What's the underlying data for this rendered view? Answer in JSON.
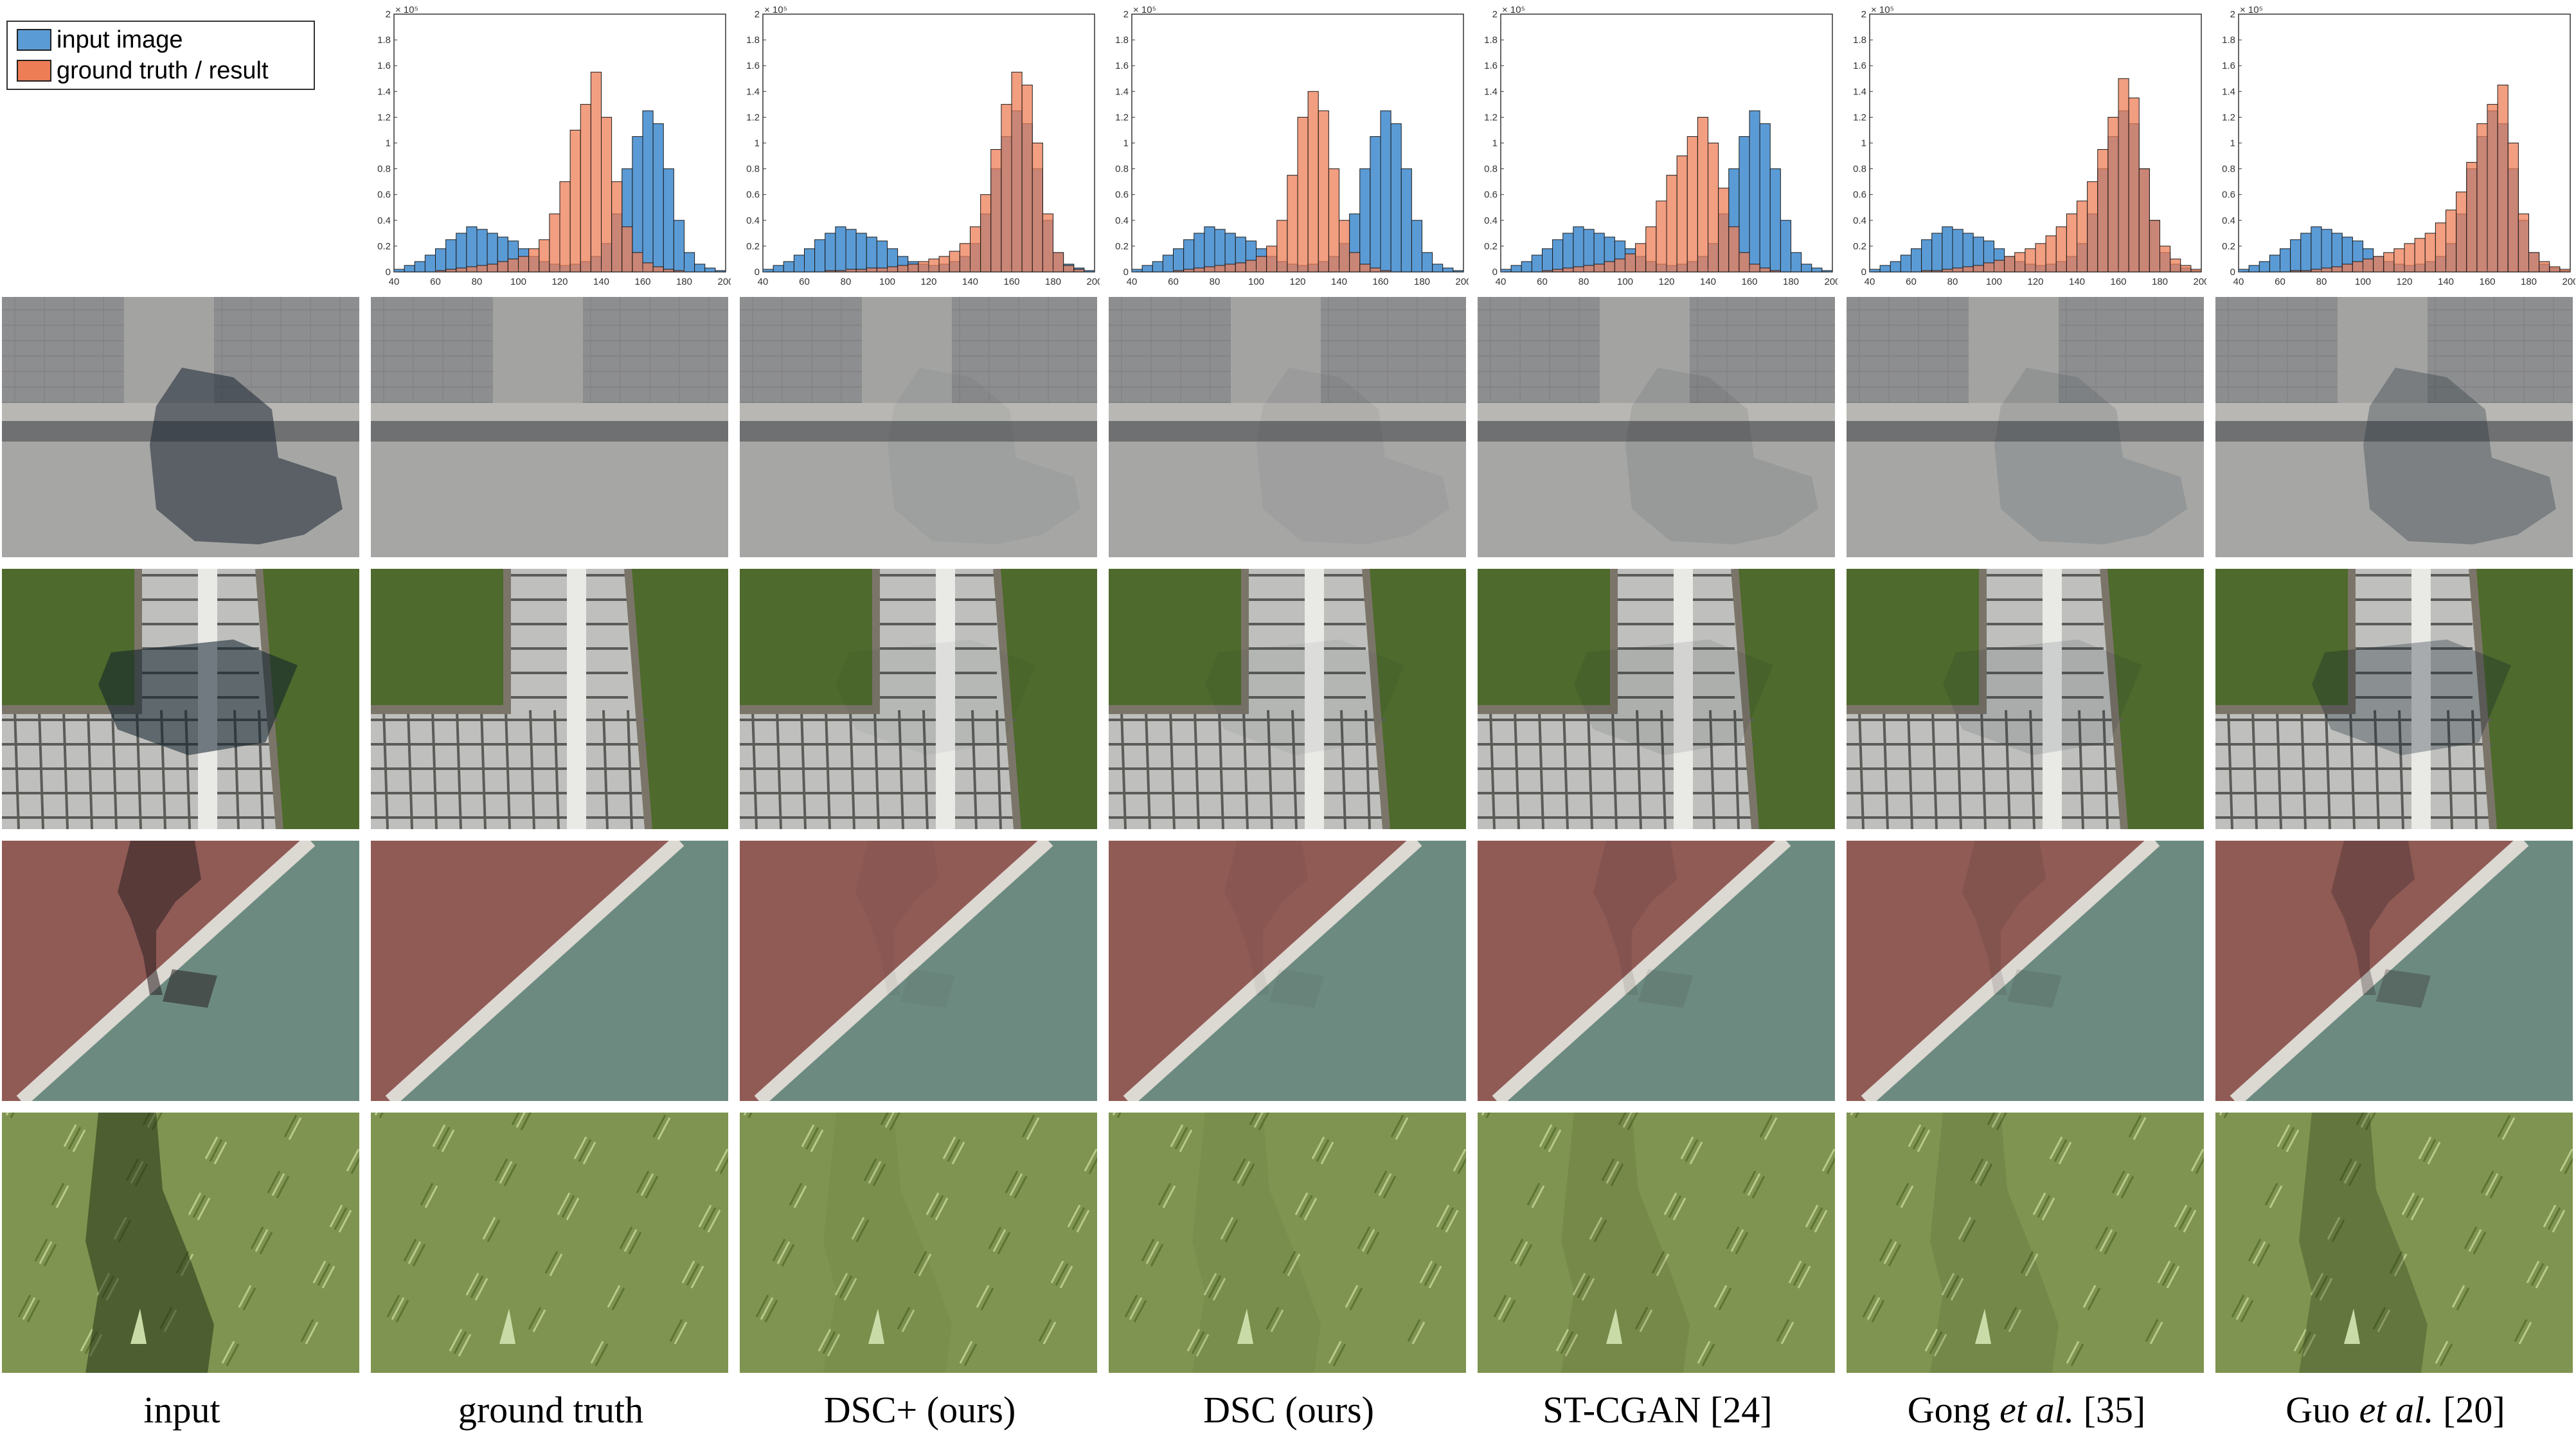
{
  "legend": {
    "input_label": "input image",
    "result_label": "ground truth / result",
    "input_color": "#5b9bd5",
    "result_color": "#ed7d55"
  },
  "columns": [
    {
      "label": "input"
    },
    {
      "label": "ground truth"
    },
    {
      "label": "DSC+ (ours)"
    },
    {
      "label": "DSC (ours)"
    },
    {
      "label": "ST-CGAN [24]"
    },
    {
      "label_prefix": "Gong ",
      "label_em": "et al.",
      "label_suffix": " [35]"
    },
    {
      "label_prefix": "Guo ",
      "label_em": "et al.",
      "label_suffix": " [20]"
    }
  ],
  "rows": [
    {
      "scene": "pavement with curb"
    },
    {
      "scene": "tiled path with grass"
    },
    {
      "scene": "red and green running track"
    },
    {
      "scene": "grass"
    }
  ],
  "chart_data": [
    {
      "type": "bar",
      "panel": "ground truth",
      "x": [
        40,
        45,
        50,
        55,
        60,
        65,
        70,
        75,
        80,
        85,
        90,
        95,
        100,
        105,
        110,
        115,
        120,
        125,
        130,
        135,
        140,
        145,
        150,
        155,
        160,
        165,
        170,
        175,
        180,
        185,
        190,
        195
      ],
      "xlim": [
        40,
        200
      ],
      "ylim": [
        0,
        2
      ],
      "y_exponent_label": "× 10⁵",
      "xticks": [
        "40",
        "60",
        "80",
        "100",
        "120",
        "140",
        "160",
        "180",
        "200"
      ],
      "yticks": [
        "0",
        "0.2",
        "0.4",
        "0.6",
        "0.8",
        "1",
        "1.2",
        "1.4",
        "1.6",
        "1.8",
        "2"
      ],
      "series": [
        {
          "name": "input image",
          "values": [
            0.02,
            0.05,
            0.08,
            0.13,
            0.18,
            0.25,
            0.3,
            0.35,
            0.33,
            0.3,
            0.27,
            0.24,
            0.18,
            0.12,
            0.08,
            0.06,
            0.05,
            0.06,
            0.08,
            0.12,
            0.22,
            0.45,
            0.8,
            1.05,
            1.25,
            1.15,
            0.8,
            0.4,
            0.15,
            0.06,
            0.03,
            0.01
          ]
        },
        {
          "name": "ground truth / result",
          "values": [
            0,
            0,
            0,
            0,
            0.01,
            0.02,
            0.03,
            0.04,
            0.05,
            0.06,
            0.08,
            0.1,
            0.12,
            0.18,
            0.25,
            0.45,
            0.7,
            1.1,
            1.3,
            1.55,
            1.2,
            0.7,
            0.35,
            0.15,
            0.07,
            0.04,
            0.02,
            0.01,
            0,
            0,
            0,
            0
          ]
        }
      ]
    },
    {
      "type": "bar",
      "panel": "DSC+ (ours)",
      "x": [
        40,
        45,
        50,
        55,
        60,
        65,
        70,
        75,
        80,
        85,
        90,
        95,
        100,
        105,
        110,
        115,
        120,
        125,
        130,
        135,
        140,
        145,
        150,
        155,
        160,
        165,
        170,
        175,
        180,
        185,
        190,
        195
      ],
      "xlim": [
        40,
        200
      ],
      "ylim": [
        0,
        2
      ],
      "y_exponent_label": "× 10⁵",
      "xticks": [
        "40",
        "60",
        "80",
        "100",
        "120",
        "140",
        "160",
        "180",
        "200"
      ],
      "yticks": [
        "0",
        "0.2",
        "0.4",
        "0.6",
        "0.8",
        "1",
        "1.2",
        "1.4",
        "1.6",
        "1.8",
        "2"
      ],
      "series": [
        {
          "name": "input image",
          "values": [
            0.02,
            0.05,
            0.08,
            0.13,
            0.18,
            0.25,
            0.3,
            0.35,
            0.33,
            0.3,
            0.27,
            0.24,
            0.18,
            0.12,
            0.08,
            0.06,
            0.05,
            0.06,
            0.08,
            0.12,
            0.22,
            0.45,
            0.8,
            1.05,
            1.25,
            1.15,
            0.8,
            0.4,
            0.15,
            0.06,
            0.03,
            0.01
          ]
        },
        {
          "name": "ground truth / result",
          "values": [
            0,
            0,
            0,
            0,
            0,
            0,
            0.01,
            0.01,
            0.02,
            0.02,
            0.03,
            0.03,
            0.04,
            0.05,
            0.06,
            0.08,
            0.1,
            0.12,
            0.16,
            0.22,
            0.35,
            0.6,
            0.95,
            1.3,
            1.55,
            1.45,
            1.0,
            0.45,
            0.15,
            0.05,
            0.02,
            0
          ]
        }
      ]
    },
    {
      "type": "bar",
      "panel": "DSC (ours)",
      "x": [
        40,
        45,
        50,
        55,
        60,
        65,
        70,
        75,
        80,
        85,
        90,
        95,
        100,
        105,
        110,
        115,
        120,
        125,
        130,
        135,
        140,
        145,
        150,
        155,
        160,
        165,
        170,
        175,
        180,
        185,
        190,
        195
      ],
      "xlim": [
        40,
        200
      ],
      "ylim": [
        0,
        2
      ],
      "y_exponent_label": "× 10⁵",
      "xticks": [
        "40",
        "60",
        "80",
        "100",
        "120",
        "140",
        "160",
        "180",
        "200"
      ],
      "yticks": [
        "0",
        "0.2",
        "0.4",
        "0.6",
        "0.8",
        "1",
        "1.2",
        "1.4",
        "1.6",
        "1.8",
        "2"
      ],
      "series": [
        {
          "name": "input image",
          "values": [
            0.02,
            0.05,
            0.08,
            0.13,
            0.18,
            0.25,
            0.3,
            0.35,
            0.33,
            0.3,
            0.27,
            0.24,
            0.18,
            0.12,
            0.08,
            0.06,
            0.05,
            0.06,
            0.08,
            0.12,
            0.22,
            0.45,
            0.8,
            1.05,
            1.25,
            1.15,
            0.8,
            0.4,
            0.15,
            0.06,
            0.03,
            0.01
          ]
        },
        {
          "name": "ground truth / result",
          "values": [
            0,
            0,
            0,
            0,
            0.01,
            0.02,
            0.03,
            0.04,
            0.05,
            0.06,
            0.07,
            0.09,
            0.12,
            0.2,
            0.4,
            0.75,
            1.2,
            1.4,
            1.25,
            0.8,
            0.4,
            0.15,
            0.06,
            0.03,
            0.01,
            0,
            0,
            0,
            0,
            0,
            0,
            0
          ]
        }
      ]
    },
    {
      "type": "bar",
      "panel": "ST-CGAN [24]",
      "x": [
        40,
        45,
        50,
        55,
        60,
        65,
        70,
        75,
        80,
        85,
        90,
        95,
        100,
        105,
        110,
        115,
        120,
        125,
        130,
        135,
        140,
        145,
        150,
        155,
        160,
        165,
        170,
        175,
        180,
        185,
        190,
        195
      ],
      "xlim": [
        40,
        200
      ],
      "ylim": [
        0,
        2
      ],
      "y_exponent_label": "× 10⁵",
      "xticks": [
        "40",
        "60",
        "80",
        "100",
        "120",
        "140",
        "160",
        "180",
        "200"
      ],
      "yticks": [
        "0",
        "0.2",
        "0.4",
        "0.6",
        "0.8",
        "1",
        "1.2",
        "1.4",
        "1.6",
        "1.8",
        "2"
      ],
      "series": [
        {
          "name": "input image",
          "values": [
            0.02,
            0.05,
            0.08,
            0.13,
            0.18,
            0.25,
            0.3,
            0.35,
            0.33,
            0.3,
            0.27,
            0.24,
            0.18,
            0.12,
            0.08,
            0.06,
            0.05,
            0.06,
            0.08,
            0.12,
            0.22,
            0.45,
            0.8,
            1.05,
            1.25,
            1.15,
            0.8,
            0.4,
            0.15,
            0.06,
            0.03,
            0.01
          ]
        },
        {
          "name": "ground truth / result",
          "values": [
            0,
            0,
            0,
            0,
            0.01,
            0.02,
            0.03,
            0.04,
            0.05,
            0.06,
            0.08,
            0.1,
            0.14,
            0.22,
            0.35,
            0.55,
            0.75,
            0.9,
            1.05,
            1.2,
            1.0,
            0.65,
            0.35,
            0.15,
            0.06,
            0.03,
            0.01,
            0,
            0,
            0,
            0,
            0
          ]
        }
      ]
    },
    {
      "type": "bar",
      "panel": "Gong et al. [35]",
      "x": [
        40,
        45,
        50,
        55,
        60,
        65,
        70,
        75,
        80,
        85,
        90,
        95,
        100,
        105,
        110,
        115,
        120,
        125,
        130,
        135,
        140,
        145,
        150,
        155,
        160,
        165,
        170,
        175,
        180,
        185,
        190,
        195
      ],
      "xlim": [
        40,
        200
      ],
      "ylim": [
        0,
        2
      ],
      "y_exponent_label": "× 10⁵",
      "xticks": [
        "40",
        "60",
        "80",
        "100",
        "120",
        "140",
        "160",
        "180",
        "200"
      ],
      "yticks": [
        "0",
        "0.2",
        "0.4",
        "0.6",
        "0.8",
        "1",
        "1.2",
        "1.4",
        "1.6",
        "1.8",
        "2"
      ],
      "series": [
        {
          "name": "input image",
          "values": [
            0.02,
            0.05,
            0.08,
            0.13,
            0.18,
            0.25,
            0.3,
            0.35,
            0.33,
            0.3,
            0.27,
            0.24,
            0.18,
            0.12,
            0.08,
            0.06,
            0.05,
            0.06,
            0.08,
            0.12,
            0.22,
            0.45,
            0.8,
            1.05,
            1.25,
            1.15,
            0.8,
            0.4,
            0.15,
            0.06,
            0.03,
            0.01
          ]
        },
        {
          "name": "ground truth / result",
          "values": [
            0,
            0,
            0,
            0,
            0,
            0.01,
            0.01,
            0.02,
            0.03,
            0.04,
            0.05,
            0.07,
            0.09,
            0.12,
            0.15,
            0.18,
            0.22,
            0.28,
            0.35,
            0.45,
            0.55,
            0.7,
            0.95,
            1.2,
            1.5,
            1.35,
            0.8,
            0.4,
            0.2,
            0.1,
            0.05,
            0.02
          ]
        }
      ]
    },
    {
      "type": "bar",
      "panel": "Guo et al. [20]",
      "x": [
        40,
        45,
        50,
        55,
        60,
        65,
        70,
        75,
        80,
        85,
        90,
        95,
        100,
        105,
        110,
        115,
        120,
        125,
        130,
        135,
        140,
        145,
        150,
        155,
        160,
        165,
        170,
        175,
        180,
        185,
        190,
        195
      ],
      "xlim": [
        40,
        200
      ],
      "ylim": [
        0,
        2
      ],
      "y_exponent_label": "× 10⁵",
      "xticks": [
        "40",
        "60",
        "80",
        "100",
        "120",
        "140",
        "160",
        "180",
        "200"
      ],
      "yticks": [
        "0",
        "0.2",
        "0.4",
        "0.6",
        "0.8",
        "1",
        "1.2",
        "1.4",
        "1.6",
        "1.8",
        "2"
      ],
      "series": [
        {
          "name": "input image",
          "values": [
            0.02,
            0.05,
            0.08,
            0.13,
            0.18,
            0.25,
            0.3,
            0.35,
            0.33,
            0.3,
            0.27,
            0.24,
            0.18,
            0.12,
            0.08,
            0.06,
            0.05,
            0.06,
            0.08,
            0.12,
            0.22,
            0.45,
            0.8,
            1.05,
            1.25,
            1.15,
            0.8,
            0.4,
            0.15,
            0.06,
            0.03,
            0.01
          ]
        },
        {
          "name": "ground truth / result",
          "values": [
            0,
            0,
            0,
            0,
            0,
            0.01,
            0.01,
            0.02,
            0.03,
            0.04,
            0.06,
            0.08,
            0.1,
            0.12,
            0.15,
            0.18,
            0.22,
            0.26,
            0.3,
            0.38,
            0.48,
            0.62,
            0.85,
            1.15,
            1.3,
            1.45,
            1.0,
            0.45,
            0.15,
            0.08,
            0.04,
            0.02
          ]
        }
      ]
    }
  ]
}
